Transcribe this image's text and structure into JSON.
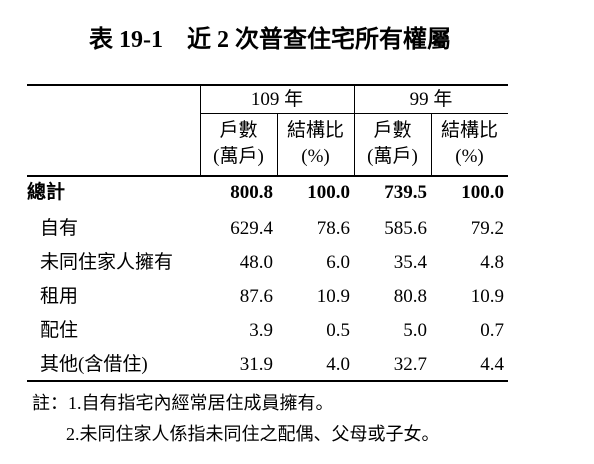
{
  "title": "表 19-1　近 2 次普查住宅所有權屬",
  "table": {
    "groups": [
      "109 年",
      "99 年"
    ],
    "subheaders": [
      [
        "戶數",
        "(萬戶)"
      ],
      [
        "結構比",
        "(%)"
      ],
      [
        "戶數",
        "(萬戶)"
      ],
      [
        "結構比",
        "(%)"
      ]
    ],
    "rows": [
      [
        "總計",
        "800.8",
        "100.0",
        "739.5",
        "100.0"
      ],
      [
        "自有",
        "629.4",
        "78.6",
        "585.6",
        "79.2"
      ],
      [
        "未同住家人擁有",
        "48.0",
        "6.0",
        "35.4",
        "4.8"
      ],
      [
        "租用",
        "87.6",
        "10.9",
        "80.8",
        "10.9"
      ],
      [
        "配住",
        "3.9",
        "0.5",
        "5.0",
        "0.7"
      ],
      [
        "其他(含借住)",
        "31.9",
        "4.0",
        "32.7",
        "4.4"
      ]
    ]
  },
  "notes": [
    "註：1.自有指宅內經常居住成員擁有。",
    "2.未同住家人係指未同住之配偶、父母或子女。"
  ]
}
